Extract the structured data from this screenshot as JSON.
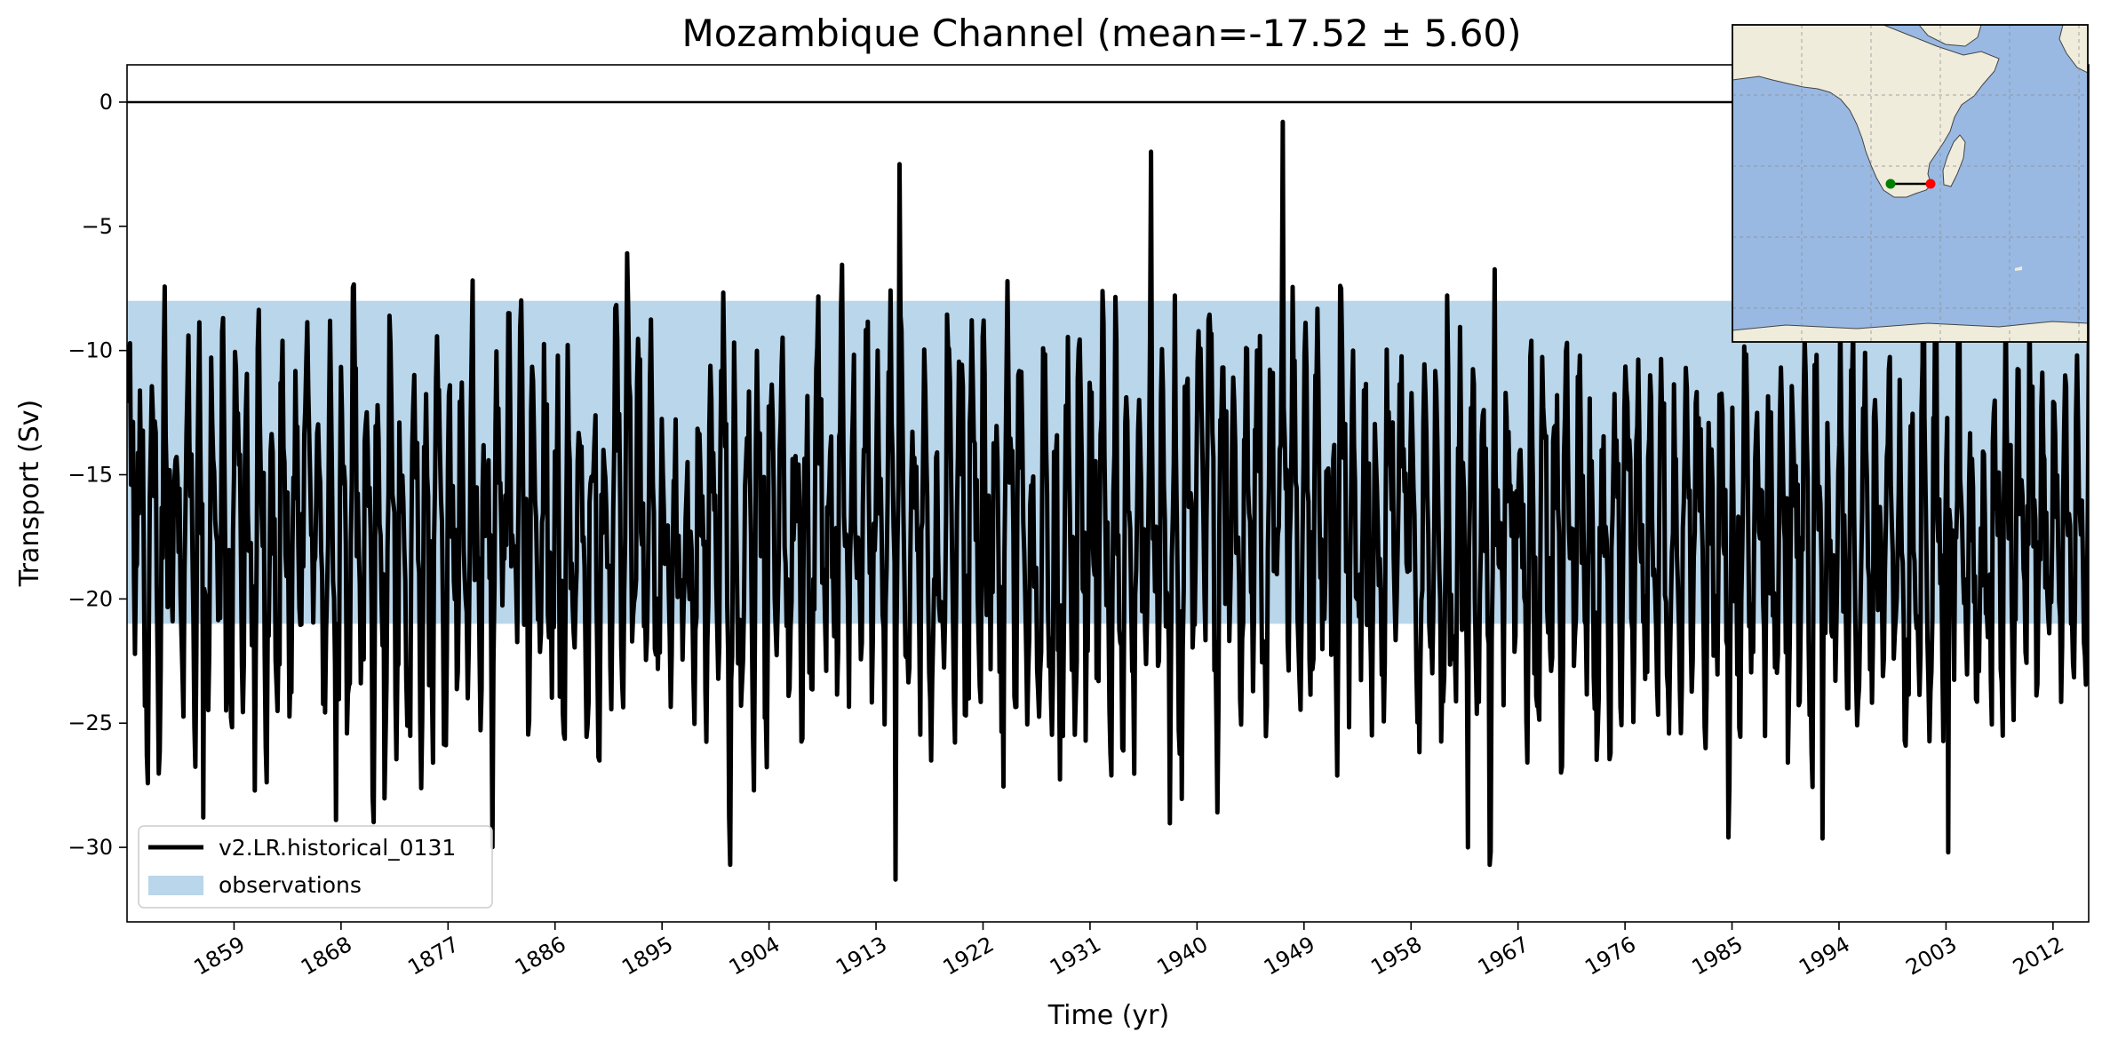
{
  "chart_data": {
    "type": "line",
    "title": "Mozambique Channel (mean=-17.52 ± 5.60)",
    "xlabel": "Time (yr)",
    "ylabel": "Transport (Sv)",
    "xlim": [
      1850,
      2015
    ],
    "ylim": [
      -33,
      1.5
    ],
    "x_ticks": [
      "1859",
      "1868",
      "1877",
      "1886",
      "1895",
      "1904",
      "1913",
      "1922",
      "1931",
      "1940",
      "1949",
      "1958",
      "1967",
      "1976",
      "1985",
      "1994",
      "2003",
      "2012"
    ],
    "y_ticks": [
      "0",
      "−5",
      "−10",
      "−15",
      "−20",
      "−25",
      "−30"
    ],
    "y_tick_values": [
      0,
      -5,
      -10,
      -15,
      -20,
      -25,
      -30
    ],
    "grid": false,
    "legend_placement": "lower-left",
    "zero_line": 0,
    "observations_band": {
      "name": "observations",
      "low": -21,
      "high": -8,
      "color": "#b9d6ea"
    },
    "series": [
      {
        "name": "v2.LR.historical_0131",
        "color": "#000000",
        "x_start": 1850,
        "x_step": 0.0833,
        "frequency": "monthly",
        "mean": -17.52,
        "std": 5.6,
        "min": -31.3,
        "max": -0.8,
        "notable_extrema": [
          {
            "x": 1915.0,
            "y": -2.5
          },
          {
            "x": 1914.6,
            "y": -31.3
          },
          {
            "x": 1936.1,
            "y": -2.0
          },
          {
            "x": 1947.2,
            "y": -0.8
          },
          {
            "x": 1962.8,
            "y": -30.0
          },
          {
            "x": 2003.2,
            "y": -30.2
          },
          {
            "x": 1867.6,
            "y": -28.9
          },
          {
            "x": 1856.4,
            "y": -28.8
          }
        ]
      }
    ]
  },
  "map_inset": {
    "land_color": "#efecdc",
    "ocean_color": "#99b9e3",
    "start_point_color": "#008000",
    "end_point_color": "#ff0000"
  }
}
